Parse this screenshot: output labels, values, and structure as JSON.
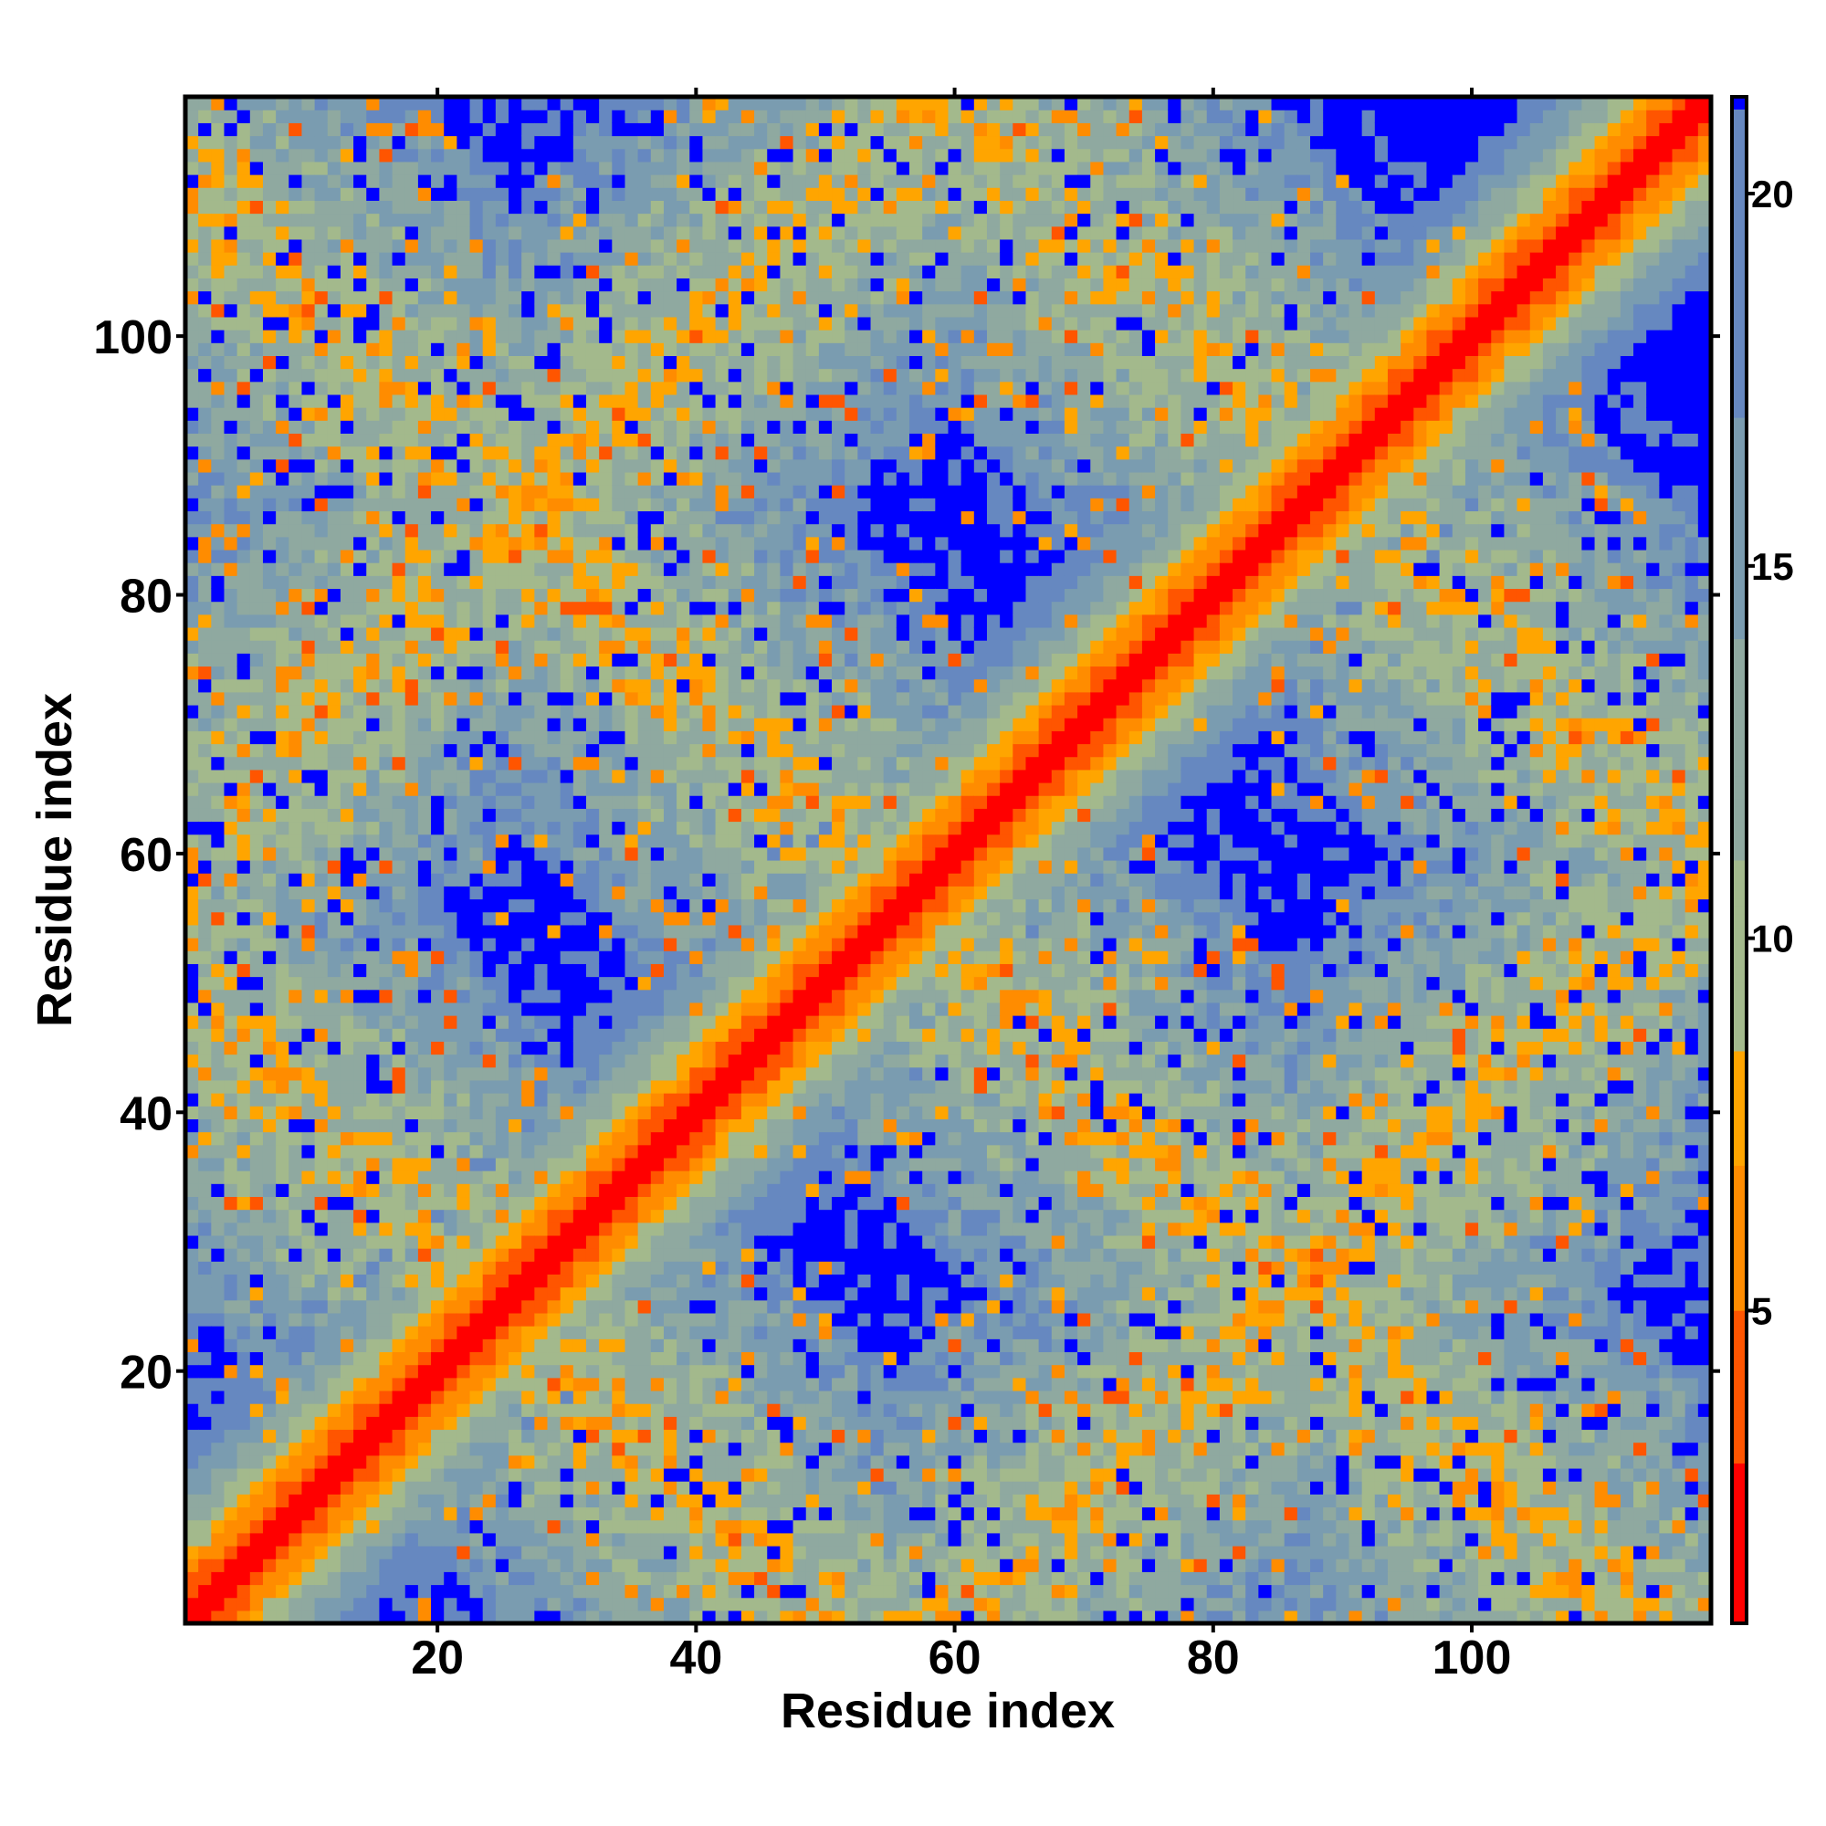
{
  "chart_data": {
    "type": "heatmap",
    "title": "",
    "xlabel": "Residue index",
    "ylabel": "Residue index",
    "n_residues": 118,
    "xlim": [
      0.5,
      118.5
    ],
    "ylim": [
      0.5,
      118.5
    ],
    "xticks": [
      20,
      40,
      60,
      80,
      100
    ],
    "yticks": [
      20,
      40,
      60,
      80,
      100
    ],
    "colorbar": {
      "range": [
        0.8,
        21.3
      ],
      "ticks": [
        5,
        10,
        15,
        20
      ],
      "colors": [
        {
          "max": 3,
          "color": "#ff0000"
        },
        {
          "max": 5,
          "color": "#ff5500"
        },
        {
          "max": 7,
          "color": "#ff8c00"
        },
        {
          "max": 8.5,
          "color": "#ffa500"
        },
        {
          "max": 11,
          "color": "#a3b98c"
        },
        {
          "max": 14,
          "color": "#8fa9a0"
        },
        {
          "max": 17,
          "color": "#7a9cb0"
        },
        {
          "max": 21.3,
          "color": "#6688c0"
        },
        {
          "max": 999,
          "color": "#0000ff"
        }
      ]
    },
    "matrix_model": {
      "description": "symmetric residue distance map",
      "diagonal_slope": 1.4,
      "antidiagonal_bands_i_plus_j": [
        50,
        112,
        178
      ],
      "parallel_bands_j_minus_i": [
        60,
        -60
      ],
      "band_halfwidth": 13
    }
  }
}
